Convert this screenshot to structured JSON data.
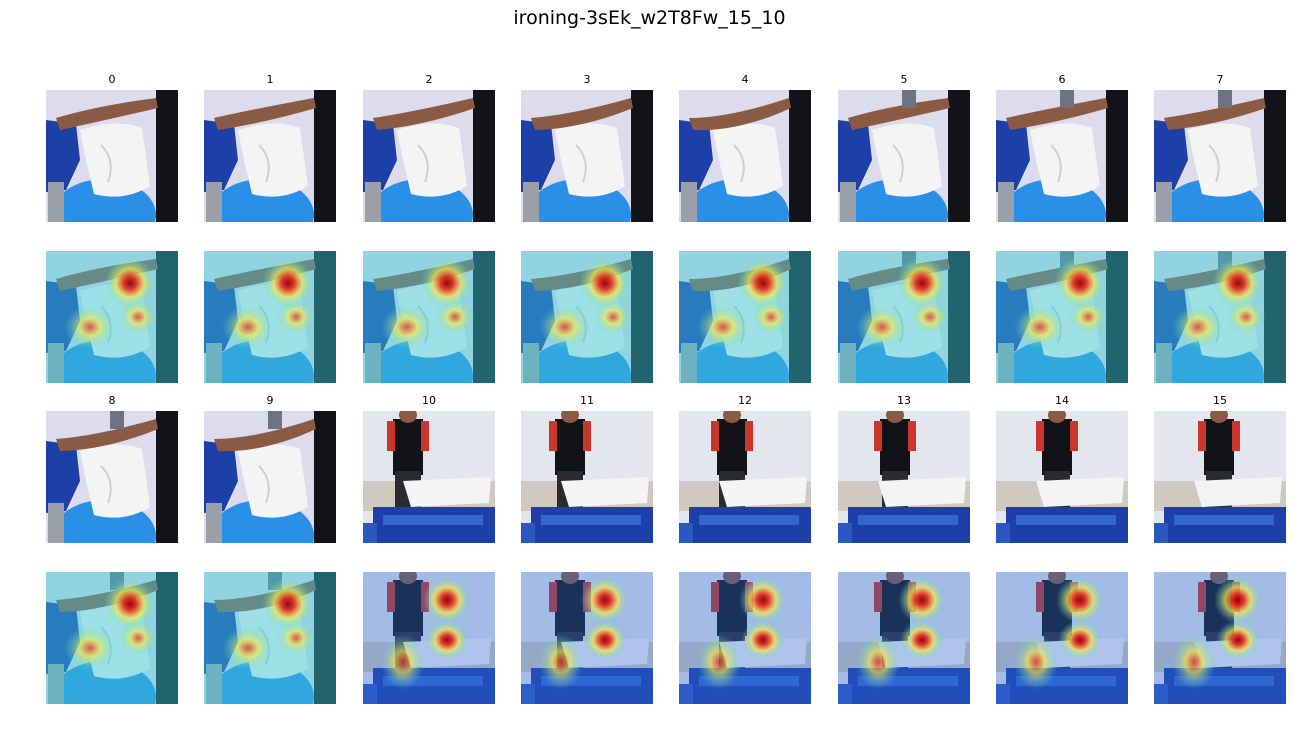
{
  "figure": {
    "title": "ironing-3sEk_w2T8Fw_15_10"
  },
  "frames": [
    {
      "label": "0",
      "scene": "closeup"
    },
    {
      "label": "1",
      "scene": "closeup"
    },
    {
      "label": "2",
      "scene": "closeup"
    },
    {
      "label": "3",
      "scene": "closeup"
    },
    {
      "label": "4",
      "scene": "closeup"
    },
    {
      "label": "5",
      "scene": "closeup"
    },
    {
      "label": "6",
      "scene": "closeup"
    },
    {
      "label": "7",
      "scene": "closeup"
    },
    {
      "label": "8",
      "scene": "closeup"
    },
    {
      "label": "9",
      "scene": "closeup"
    },
    {
      "label": "10",
      "scene": "wide"
    },
    {
      "label": "11",
      "scene": "wide"
    },
    {
      "label": "12",
      "scene": "wide"
    },
    {
      "label": "13",
      "scene": "wide"
    },
    {
      "label": "14",
      "scene": "wide"
    },
    {
      "label": "15",
      "scene": "wide"
    }
  ],
  "colors": {
    "wall": "#dcdcec",
    "blue_board": "#2a8fe6",
    "dark_blue": "#1c3fa8",
    "cloth": "#f4f4f4",
    "skin": "#8a5a44",
    "dark": "#111318",
    "red_shirt": "#c8362c",
    "heat_hot": "#e8261a",
    "heat_warm": "#f5e94a",
    "heat_cool": "#4fd8d0"
  }
}
